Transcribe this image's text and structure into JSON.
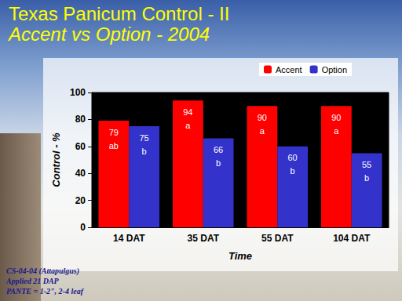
{
  "chart_data": {
    "type": "bar",
    "title": "Texas Panicum Control - II",
    "subtitle": "Accent vs Option - 2004",
    "x_label": "Time",
    "y_label": "Control - %",
    "categories": [
      "14 DAT",
      "35 DAT",
      "55 DAT",
      "104 DAT"
    ],
    "series": [
      {
        "name": "Accent",
        "color": "#ff0000",
        "values": [
          79,
          94,
          90,
          90
        ],
        "letters": [
          "ab",
          "a",
          "a",
          "a"
        ]
      },
      {
        "name": "Option",
        "color": "#3333cc",
        "values": [
          75,
          66,
          60,
          55
        ],
        "letters": [
          "b",
          "b",
          "b",
          "b"
        ]
      }
    ],
    "ylim": [
      0,
      100
    ],
    "yticks": [
      0,
      20,
      40,
      60,
      80,
      100
    ],
    "grid": false,
    "legend": "top",
    "data_labels": true,
    "notes": [
      "CS-04-04 (Attapulgus)",
      "Applied 21 DAP",
      "PANTE = 1-2\", 2-4 leaf"
    ]
  }
}
